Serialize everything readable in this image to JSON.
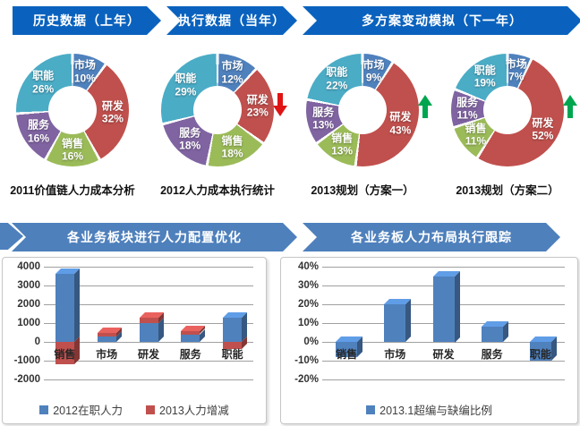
{
  "top_banners": [
    {
      "label": "历史数据（上年）"
    },
    {
      "label": "执行数据（当年）"
    },
    {
      "label": "多方案变动模拟（下一年）"
    }
  ],
  "bottom_banners": {
    "left": "各业务板块进行人力配置优化",
    "right": "各业务板人力布局执行跟踪"
  },
  "palette": {
    "market_blue": "#4f81bd",
    "rd_red": "#c0504d",
    "sales_green": "#9bbb59",
    "service_purple": "#8064a2",
    "function_teal": "#4bacc6",
    "banner_top_blue": "#0a62be",
    "banner_bottom_blue": "#4e80bc",
    "trend_up_green": "#00a550",
    "trend_down_red": "#e01414"
  },
  "chart_data": [
    {
      "id": "donut-2011",
      "type": "pie",
      "donut": true,
      "title": "2011价值链人力成本分析",
      "trend": null,
      "labels": [
        "市场",
        "研发",
        "销售",
        "服务",
        "职能"
      ],
      "values": [
        10,
        32,
        16,
        16,
        26
      ],
      "unit": "%",
      "colors": [
        "#4f81bd",
        "#c0504d",
        "#9bbb59",
        "#8064a2",
        "#4bacc6"
      ]
    },
    {
      "id": "donut-2012",
      "type": "pie",
      "donut": true,
      "title": "2012人力成本执行统计",
      "trend": "down",
      "labels": [
        "市场",
        "研发",
        "销售",
        "服务",
        "职能"
      ],
      "values": [
        12,
        23,
        18,
        18,
        29
      ],
      "unit": "%",
      "colors": [
        "#4f81bd",
        "#c0504d",
        "#9bbb59",
        "#8064a2",
        "#4bacc6"
      ]
    },
    {
      "id": "donut-2013a",
      "type": "pie",
      "donut": true,
      "title": "2013规划（方案一）",
      "trend": "up",
      "labels": [
        "市场",
        "研发",
        "销售",
        "服务",
        "职能"
      ],
      "values": [
        9,
        43,
        13,
        13,
        22
      ],
      "unit": "%",
      "colors": [
        "#4f81bd",
        "#c0504d",
        "#9bbb59",
        "#8064a2",
        "#4bacc6"
      ]
    },
    {
      "id": "donut-2013b",
      "type": "pie",
      "donut": true,
      "title": "2013规划（方案二）",
      "trend": "up",
      "labels": [
        "市场",
        "研发",
        "销售",
        "服务",
        "职能"
      ],
      "values": [
        7,
        52,
        11,
        11,
        19
      ],
      "unit": "%",
      "colors": [
        "#4f81bd",
        "#c0504d",
        "#9bbb59",
        "#8064a2",
        "#4bacc6"
      ]
    },
    {
      "id": "bar-left",
      "type": "bar",
      "stacked": true,
      "categories": [
        "销售",
        "市场",
        "研发",
        "服务",
        "职能"
      ],
      "series": [
        {
          "name": "2012在职人力",
          "color": "#4f81bd",
          "values": [
            3600,
            300,
            1000,
            400,
            1300
          ]
        },
        {
          "name": "2013人力增减",
          "color": "#c0504d",
          "values": [
            -1200,
            200,
            300,
            150,
            -400
          ]
        }
      ],
      "ylim": [
        -2000,
        4000
      ],
      "ytick": 1000,
      "unit": "",
      "grid": true,
      "legend_position": "bottom"
    },
    {
      "id": "bar-right",
      "type": "bar",
      "stacked": false,
      "categories": [
        "销售",
        "市场",
        "研发",
        "服务",
        "职能"
      ],
      "series": [
        {
          "name": "2013.1超编与缺编比例",
          "color": "#4f81bd",
          "values": [
            -8,
            20,
            35,
            8,
            -10
          ]
        }
      ],
      "ylim": [
        -20,
        40
      ],
      "ytick": 10,
      "unit": "%",
      "grid": true,
      "legend_position": "bottom"
    }
  ]
}
